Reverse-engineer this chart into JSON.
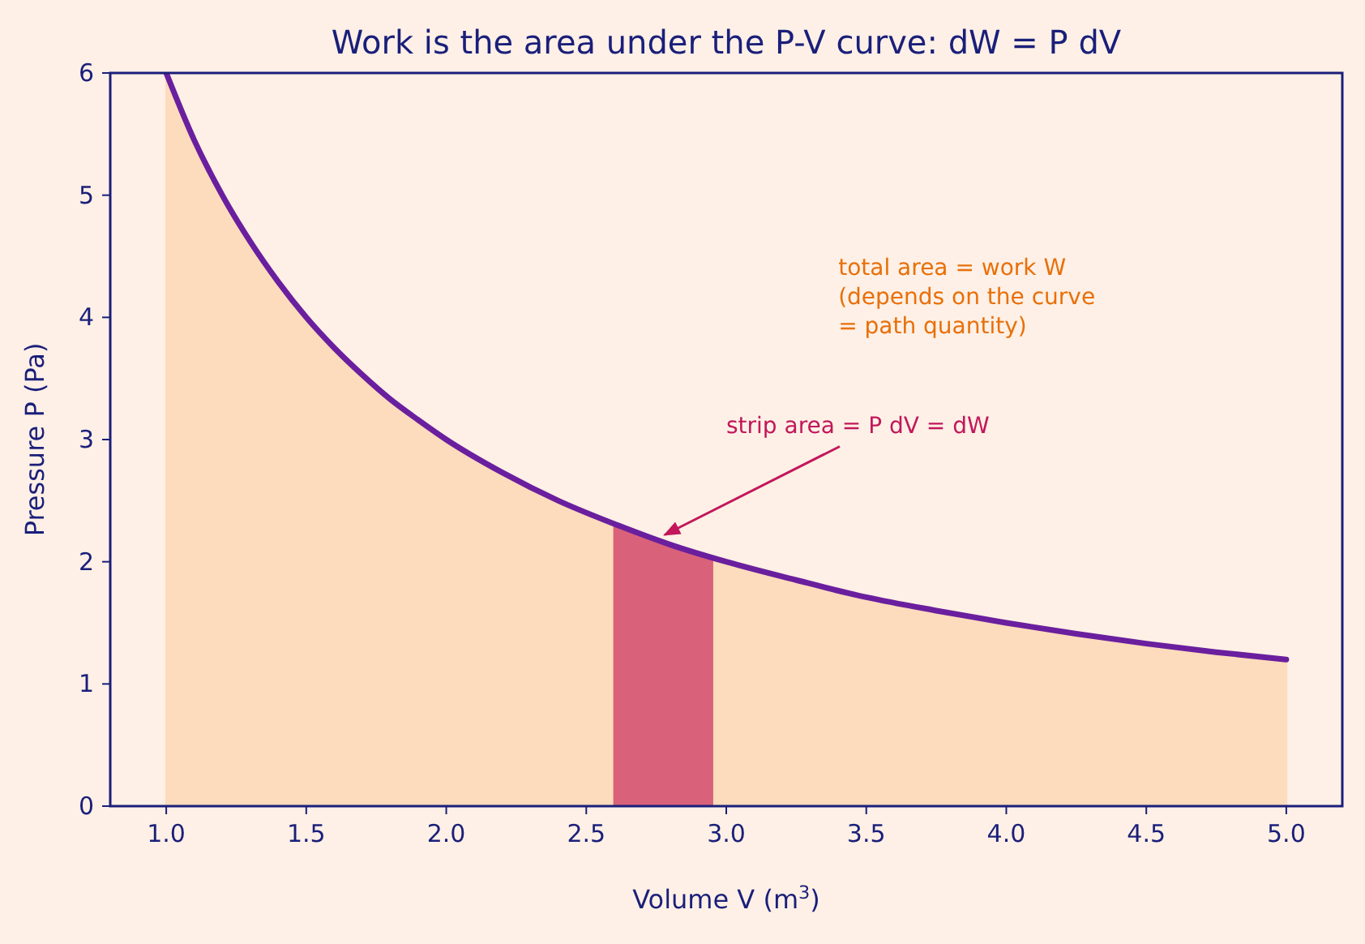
{
  "chart_data": {
    "type": "line",
    "title": "Work is the area under the P-V curve:  dW = P dV",
    "xlabel": "Volume  V  (m$^{3}$)",
    "ylabel": "Pressure  P  (Pa)",
    "xlim": [
      0.8,
      5.2
    ],
    "ylim": [
      0,
      6
    ],
    "xticks": [
      {
        "value": 1,
        "label": "1.0"
      },
      {
        "value": 1.5,
        "label": "1.5"
      },
      {
        "value": 2,
        "label": "2.0"
      },
      {
        "value": 2.5,
        "label": "2.5"
      },
      {
        "value": 3,
        "label": "3.0"
      },
      {
        "value": 3.5,
        "label": "3.5"
      },
      {
        "value": 4,
        "label": "4.0"
      },
      {
        "value": 4.5,
        "label": "4.5"
      },
      {
        "value": 5,
        "label": "5.0"
      }
    ],
    "yticks": [
      0,
      1,
      2,
      3,
      4,
      5,
      6
    ],
    "series": [
      {
        "type": "area",
        "color": "#fcdcbc",
        "x": [
          1,
          1.1,
          1.2,
          1.3,
          1.4,
          1.5,
          1.6,
          1.7,
          1.8,
          1.9,
          2,
          2.2,
          2.4,
          2.6,
          3,
          3.25,
          3.5,
          3.75,
          4,
          4.25,
          4.5,
          4.75,
          5
        ],
        "values": [
          6,
          5.45,
          5,
          4.62,
          4.29,
          4,
          3.75,
          3.53,
          3.33,
          3.16,
          3,
          2.73,
          2.5,
          2.31,
          2,
          1.85,
          1.71,
          1.6,
          1.5,
          1.41,
          1.33,
          1.26,
          1.2
        ]
      },
      {
        "type": "area",
        "color": "#d9627a",
        "x": [
          2.6,
          2.8,
          2.95
        ],
        "values": [
          2.31,
          2.14,
          2.03
        ]
      },
      {
        "color": "#6a1f9e",
        "x": [
          1,
          1.1,
          1.2,
          1.3,
          1.4,
          1.5,
          1.6,
          1.7,
          1.8,
          1.9,
          2,
          2.2,
          2.4,
          2.6,
          2.8,
          3,
          3.25,
          3.5,
          3.75,
          4,
          4.25,
          4.5,
          4.75,
          5
        ],
        "values": [
          6,
          5.45,
          5,
          4.62,
          4.29,
          4,
          3.75,
          3.53,
          3.33,
          3.16,
          3,
          2.73,
          2.5,
          2.31,
          2.14,
          2,
          1.85,
          1.71,
          1.6,
          1.5,
          1.41,
          1.33,
          1.26,
          1.2
        ]
      }
    ],
    "annotations": [
      "total area = work W\n(depends on the curve\n= path quantity)",
      {
        "text": "strip area = P dV = dW",
        "x": 2.78,
        "y": 2.22
      }
    ]
  }
}
